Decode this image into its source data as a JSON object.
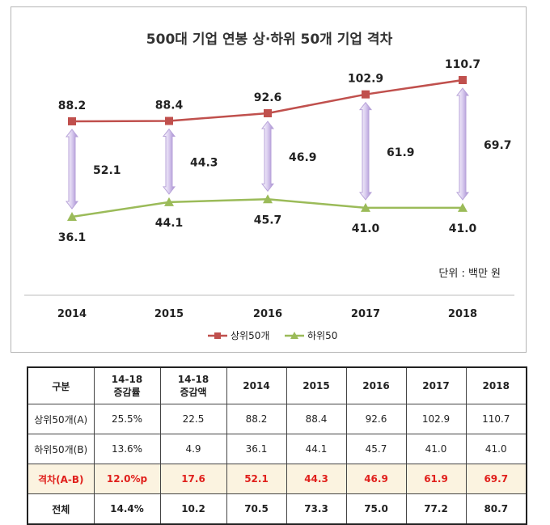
{
  "chart_data": {
    "type": "line",
    "title": "500대 기업 연봉 상·하위 50개 기업 격차",
    "categories": [
      "2014",
      "2015",
      "2016",
      "2017",
      "2018"
    ],
    "series": [
      {
        "name": "상위50개",
        "values": [
          88.2,
          88.4,
          92.6,
          102.9,
          110.7
        ],
        "color": "#c0504d"
      },
      {
        "name": "하위50",
        "values": [
          36.1,
          44.1,
          45.7,
          41.0,
          41.0
        ],
        "color": "#9bbb59"
      }
    ],
    "value_labels_top": [
      "88.2",
      "88.4",
      "92.6",
      "102.9",
      "110.7"
    ],
    "value_labels_bottom": [
      "36.1",
      "44.1",
      "45.7",
      "41.0",
      "41.0"
    ],
    "gaps": [
      52.1,
      44.3,
      46.9,
      61.9,
      69.7
    ],
    "gap_labels": [
      "52.1",
      "44.3",
      "46.9",
      "61.9",
      "69.7"
    ],
    "gap_arrow_color": "#b8a3d9",
    "unit": "단위 : 백만 원",
    "legend_position": "bottom",
    "ylim": [
      30,
      115
    ]
  },
  "table": {
    "headers": [
      "구분",
      "14-18\n증감률",
      "14-18\n증감액",
      "2014",
      "2015",
      "2016",
      "2017",
      "2018"
    ],
    "rows": [
      [
        "상위50개(A)",
        "25.5%",
        "22.5",
        "88.2",
        "88.4",
        "92.6",
        "102.9",
        "110.7"
      ],
      [
        "하위50개(B)",
        "13.6%",
        "4.9",
        "36.1",
        "44.1",
        "45.7",
        "41.0",
        "41.0"
      ],
      [
        "격차(A-B)",
        "12.0%p",
        "17.6",
        "52.1",
        "44.3",
        "46.9",
        "61.9",
        "69.7"
      ],
      [
        "전체",
        "14.4%",
        "10.2",
        "70.5",
        "73.3",
        "75.0",
        "77.2",
        "80.7"
      ]
    ],
    "highlight_color": "#e0201c"
  }
}
